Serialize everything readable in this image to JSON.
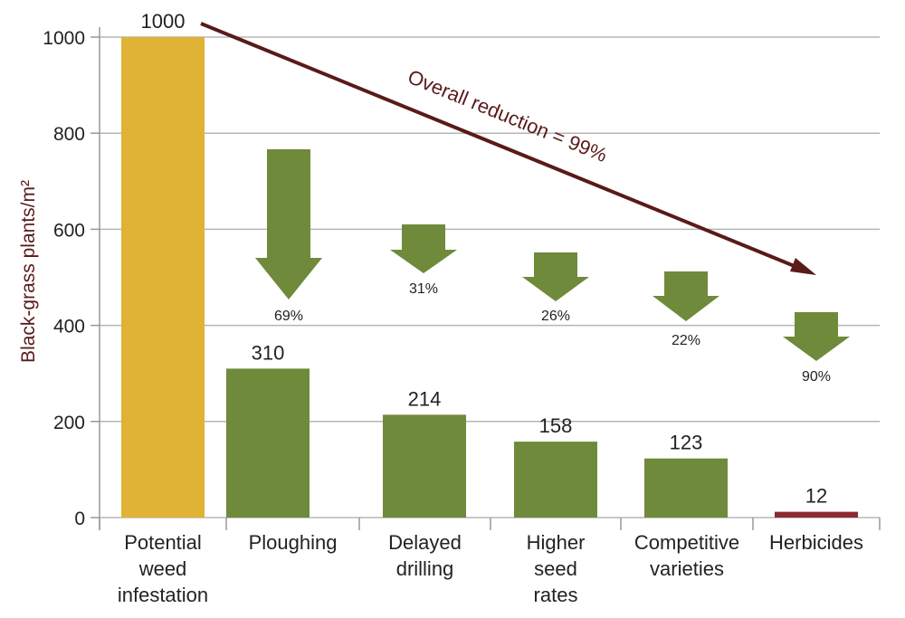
{
  "chart_data": {
    "type": "bar",
    "title": "",
    "xlabel": "",
    "ylabel": "Black-grass plants/m²",
    "ylim": [
      0,
      1000
    ],
    "yticks": [
      0,
      200,
      400,
      600,
      800,
      1000
    ],
    "grid": true,
    "categories": [
      [
        "Potential",
        "weed",
        "infestation"
      ],
      [
        "Ploughing"
      ],
      [
        "Delayed",
        "drilling"
      ],
      [
        "Higher",
        "seed",
        "rates"
      ],
      [
        "Competitive",
        "varieties"
      ],
      [
        "Herbicides"
      ]
    ],
    "values": [
      1000,
      310,
      214,
      158,
      123,
      12
    ],
    "value_labels": [
      "1000",
      "310",
      "214",
      "158",
      "123",
      "12"
    ],
    "bar_colors": [
      "#E0B236",
      "#6F8A3A",
      "#6F8A3A",
      "#6F8A3A",
      "#6F8A3A",
      "#8B2B2E"
    ],
    "reductions": [
      "69%",
      "31%",
      "26%",
      "22%",
      "90%"
    ],
    "reduction_arrow_color": "#6F8A3A",
    "annotation": "Overall reduction = 99%",
    "annotation_color": "#5A1A1A"
  }
}
